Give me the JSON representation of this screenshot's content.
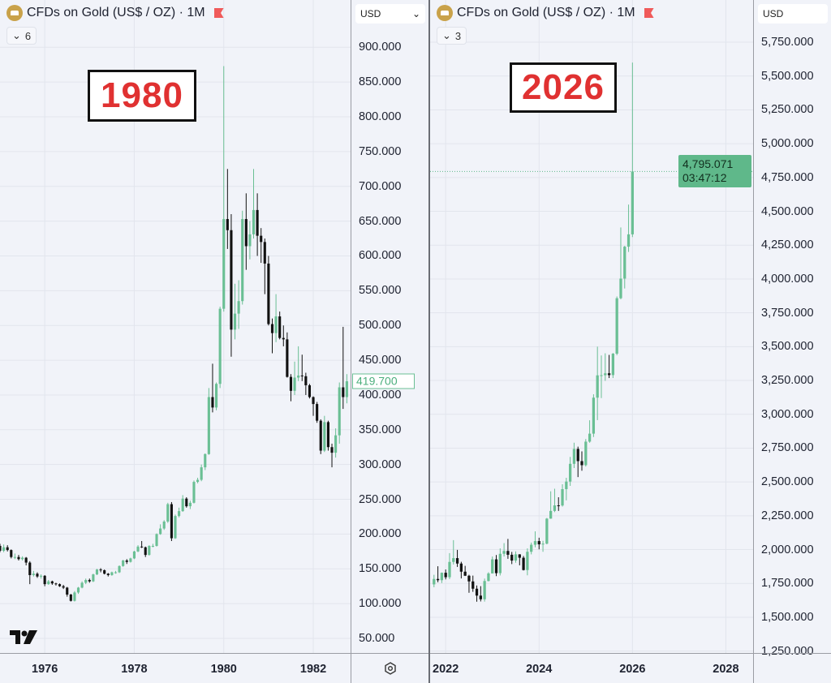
{
  "charts": [
    {
      "title": "CFDs on Gold (US$ / OZ) · 1M",
      "indicator_count": "6",
      "currency": "USD",
      "annotation": "1980",
      "last_price_label": "419.700",
      "y_ticks": [
        "900.000",
        "850.000",
        "800.000",
        "750.000",
        "700.000",
        "650.000",
        "600.000",
        "550.000",
        "500.000",
        "450.000",
        "400.000",
        "350.000",
        "300.000",
        "250.000",
        "200.000",
        "150.000",
        "100.000",
        "50.000"
      ],
      "x_ticks": [
        "1976",
        "1978",
        "1980",
        "1982"
      ]
    },
    {
      "title": "CFDs on Gold (US$ / OZ) · 1M",
      "indicator_count": "3",
      "currency": "USD",
      "annotation": "2026",
      "last_price_label": "4,795.071",
      "countdown": "03:47:12",
      "y_ticks": [
        "5,750.000",
        "5,500.000",
        "5,250.000",
        "5,000.000",
        "4,750.000",
        "4,500.000",
        "4,250.000",
        "4,000.000",
        "3,750.000",
        "3,500.000",
        "3,250.000",
        "3,000.000",
        "2,750.000",
        "2,500.000",
        "2,250.000",
        "2,000.000",
        "1,750.000",
        "1,500.000",
        "1,250.000"
      ],
      "x_ticks": [
        "2022",
        "2024",
        "2026",
        "2028"
      ]
    }
  ],
  "colors": {
    "up": "#6abf94",
    "down": "#111111",
    "grid": "#e2e5ed",
    "background": "#f1f3f9",
    "annotation": "#e03131"
  },
  "chart_data": [
    {
      "type": "candlestick",
      "title": "CFDs on Gold (US$ / OZ) · 1M",
      "currency": "USD",
      "xlim": [
        "1975-01",
        "1982-11"
      ],
      "ylim": [
        29,
        968
      ],
      "grid": true,
      "y_ticks": [
        900,
        850,
        800,
        750,
        700,
        650,
        600,
        550,
        500,
        450,
        400,
        350,
        300,
        250,
        200,
        150,
        100,
        50
      ],
      "x_ticks": [
        "1976",
        "1978",
        "1980",
        "1982"
      ],
      "last_price": 419.7,
      "columns": [
        "month",
        "open",
        "high",
        "low",
        "close"
      ],
      "candles": [
        [
          "1975-01",
          183,
          186,
          174,
          176
        ],
        [
          "1975-02",
          176,
          185,
          174,
          181
        ],
        [
          "1975-03",
          181,
          184,
          175,
          177
        ],
        [
          "1975-04",
          177,
          178,
          165,
          167
        ],
        [
          "1975-05",
          167,
          172,
          164,
          167
        ],
        [
          "1975-06",
          167,
          170,
          162,
          164
        ],
        [
          "1975-07",
          164,
          168,
          162,
          166
        ],
        [
          "1975-08",
          166,
          167,
          155,
          159
        ],
        [
          "1975-09",
          159,
          161,
          128,
          141
        ],
        [
          "1975-10",
          141,
          147,
          139,
          143
        ],
        [
          "1975-11",
          143,
          145,
          137,
          139
        ],
        [
          "1975-12",
          139,
          142,
          136,
          140
        ],
        [
          "1976-01",
          140,
          141,
          125,
          128
        ],
        [
          "1976-02",
          128,
          134,
          127,
          132
        ],
        [
          "1976-03",
          132,
          133,
          127,
          129
        ],
        [
          "1976-04",
          129,
          130,
          126,
          128
        ],
        [
          "1976-05",
          128,
          129,
          124,
          125
        ],
        [
          "1976-06",
          125,
          127,
          121,
          123
        ],
        [
          "1976-07",
          123,
          124,
          110,
          113
        ],
        [
          "1976-08",
          113,
          114,
          103,
          104
        ],
        [
          "1976-09",
          104,
          118,
          103,
          116
        ],
        [
          "1976-10",
          116,
          124,
          114,
          123
        ],
        [
          "1976-11",
          123,
          132,
          122,
          130
        ],
        [
          "1976-12",
          130,
          136,
          128,
          134
        ],
        [
          "1977-01",
          134,
          136,
          130,
          132
        ],
        [
          "1977-02",
          132,
          143,
          131,
          142
        ],
        [
          "1977-03",
          142,
          150,
          141,
          149
        ],
        [
          "1977-04",
          149,
          151,
          145,
          148
        ],
        [
          "1977-05",
          148,
          149,
          142,
          143
        ],
        [
          "1977-06",
          143,
          144,
          139,
          141
        ],
        [
          "1977-07",
          141,
          146,
          140,
          145
        ],
        [
          "1977-08",
          145,
          147,
          143,
          145
        ],
        [
          "1977-09",
          145,
          155,
          144,
          154
        ],
        [
          "1977-10",
          154,
          163,
          153,
          162
        ],
        [
          "1977-11",
          162,
          164,
          157,
          160
        ],
        [
          "1977-12",
          160,
          166,
          159,
          165
        ],
        [
          "1978-01",
          165,
          176,
          164,
          175
        ],
        [
          "1978-02",
          175,
          184,
          174,
          182
        ],
        [
          "1978-03",
          182,
          190,
          180,
          181
        ],
        [
          "1978-04",
          181,
          182,
          167,
          170
        ],
        [
          "1978-05",
          170,
          184,
          169,
          183
        ],
        [
          "1978-06",
          183,
          186,
          181,
          183
        ],
        [
          "1978-07",
          183,
          201,
          182,
          200
        ],
        [
          "1978-08",
          200,
          214,
          199,
          208
        ],
        [
          "1978-09",
          208,
          220,
          206,
          218
        ],
        [
          "1978-10",
          218,
          245,
          216,
          243
        ],
        [
          "1978-11",
          243,
          246,
          190,
          194
        ],
        [
          "1978-12",
          194,
          228,
          193,
          226
        ],
        [
          "1979-01",
          226,
          238,
          224,
          233
        ],
        [
          "1979-02",
          233,
          256,
          232,
          251
        ],
        [
          "1979-03",
          251,
          253,
          238,
          240
        ],
        [
          "1979-04",
          240,
          248,
          236,
          245
        ],
        [
          "1979-05",
          245,
          277,
          244,
          275
        ],
        [
          "1979-06",
          275,
          281,
          273,
          278
        ],
        [
          "1979-07",
          278,
          300,
          276,
          296
        ],
        [
          "1979-08",
          296,
          316,
          292,
          315
        ],
        [
          "1979-09",
          315,
          410,
          314,
          397
        ],
        [
          "1979-10",
          397,
          445,
          375,
          382
        ],
        [
          "1979-11",
          382,
          418,
          378,
          416
        ],
        [
          "1979-12",
          416,
          527,
          410,
          524
        ],
        [
          "1980-01",
          524,
          873,
          520,
          653
        ],
        [
          "1980-02",
          653,
          725,
          610,
          637
        ],
        [
          "1980-03",
          637,
          660,
          455,
          494
        ],
        [
          "1980-04",
          494,
          560,
          480,
          517
        ],
        [
          "1980-05",
          517,
          565,
          495,
          535
        ],
        [
          "1980-06",
          535,
          665,
          530,
          653
        ],
        [
          "1980-07",
          653,
          690,
          580,
          614
        ],
        [
          "1980-08",
          614,
          650,
          595,
          631
        ],
        [
          "1980-09",
          631,
          725,
          625,
          666
        ],
        [
          "1980-10",
          666,
          690,
          600,
          629
        ],
        [
          "1980-11",
          629,
          640,
          590,
          620
        ],
        [
          "1980-12",
          620,
          625,
          545,
          589
        ],
        [
          "1981-01",
          589,
          600,
          500,
          502
        ],
        [
          "1981-02",
          502,
          510,
          460,
          489
        ],
        [
          "1981-03",
          489,
          545,
          476,
          513
        ],
        [
          "1981-04",
          513,
          520,
          480,
          482
        ],
        [
          "1981-05",
          482,
          500,
          470,
          480
        ],
        [
          "1981-06",
          480,
          490,
          425,
          426
        ],
        [
          "1981-07",
          426,
          430,
          391,
          406
        ],
        [
          "1981-08",
          406,
          448,
          400,
          425
        ],
        [
          "1981-09",
          425,
          470,
          420,
          428
        ],
        [
          "1981-10",
          428,
          458,
          420,
          427
        ],
        [
          "1981-11",
          427,
          432,
          400,
          414
        ],
        [
          "1981-12",
          414,
          416,
          395,
          397
        ],
        [
          "1982-01",
          397,
          398,
          370,
          387
        ],
        [
          "1982-02",
          387,
          390,
          360,
          363
        ],
        [
          "1982-03",
          363,
          365,
          315,
          320
        ],
        [
          "1982-04",
          320,
          370,
          318,
          361
        ],
        [
          "1982-05",
          361,
          363,
          320,
          325
        ],
        [
          "1982-06",
          325,
          330,
          296,
          317
        ],
        [
          "1982-07",
          317,
          352,
          310,
          342
        ],
        [
          "1982-08",
          342,
          418,
          330,
          411
        ],
        [
          "1982-09",
          411,
          498,
          380,
          397
        ],
        [
          "1982-10",
          397,
          430,
          388,
          419.7
        ]
      ]
    },
    {
      "type": "candlestick",
      "title": "CFDs on Gold (US$ / OZ) · 1M",
      "currency": "USD",
      "xlim": [
        "2021-09",
        "2028-08"
      ],
      "ylim": [
        1236,
        6062
      ],
      "grid": true,
      "y_ticks": [
        5750,
        5500,
        5250,
        5000,
        4750,
        4500,
        4250,
        4000,
        3750,
        3500,
        3250,
        3000,
        2750,
        2500,
        2250,
        2000,
        1750,
        1500,
        1250
      ],
      "x_ticks": [
        "2022",
        "2024",
        "2026",
        "2028"
      ],
      "last_price": 4795.071,
      "columns": [
        "month",
        "open",
        "high",
        "low",
        "close"
      ],
      "candles": [
        [
          "2021-10",
          1743,
          1814,
          1722,
          1783
        ],
        [
          "2021-11",
          1783,
          1877,
          1759,
          1774
        ],
        [
          "2021-12",
          1774,
          1831,
          1753,
          1829
        ],
        [
          "2022-01",
          1829,
          1853,
          1780,
          1796
        ],
        [
          "2022-02",
          1796,
          1974,
          1782,
          1909
        ],
        [
          "2022-03",
          1909,
          2070,
          1890,
          1937
        ],
        [
          "2022-04",
          1937,
          1998,
          1872,
          1897
        ],
        [
          "2022-05",
          1897,
          1910,
          1787,
          1837
        ],
        [
          "2022-06",
          1837,
          1880,
          1805,
          1807
        ],
        [
          "2022-07",
          1807,
          1814,
          1681,
          1765
        ],
        [
          "2022-08",
          1765,
          1808,
          1688,
          1711
        ],
        [
          "2022-09",
          1711,
          1735,
          1615,
          1660
        ],
        [
          "2022-10",
          1660,
          1730,
          1617,
          1633
        ],
        [
          "2022-11",
          1633,
          1786,
          1616,
          1768
        ],
        [
          "2022-12",
          1768,
          1833,
          1765,
          1824
        ],
        [
          "2023-01",
          1824,
          1949,
          1823,
          1928
        ],
        [
          "2023-02",
          1928,
          1960,
          1804,
          1826
        ],
        [
          "2023-03",
          1826,
          2009,
          1809,
          1969
        ],
        [
          "2023-04",
          1969,
          2048,
          1949,
          1990
        ],
        [
          "2023-05",
          1990,
          2079,
          1932,
          1962
        ],
        [
          "2023-06",
          1962,
          1983,
          1893,
          1919
        ],
        [
          "2023-07",
          1919,
          1987,
          1903,
          1965
        ],
        [
          "2023-08",
          1965,
          1966,
          1884,
          1940
        ],
        [
          "2023-09",
          1940,
          1953,
          1846,
          1849
        ],
        [
          "2023-10",
          1849,
          2009,
          1810,
          1984
        ],
        [
          "2023-11",
          1984,
          2052,
          1965,
          2036
        ],
        [
          "2023-12",
          2036,
          2135,
          2017,
          2063
        ],
        [
          "2024-01",
          2063,
          2088,
          2002,
          2039
        ],
        [
          "2024-02",
          2039,
          2065,
          1984,
          2044
        ],
        [
          "2024-03",
          2044,
          2234,
          2039,
          2229
        ],
        [
          "2024-04",
          2229,
          2431,
          2228,
          2286
        ],
        [
          "2024-05",
          2286,
          2450,
          2277,
          2327
        ],
        [
          "2024-06",
          2327,
          2387,
          2286,
          2326
        ],
        [
          "2024-07",
          2326,
          2483,
          2318,
          2447
        ],
        [
          "2024-08",
          2447,
          2531,
          2364,
          2503
        ],
        [
          "2024-09",
          2503,
          2685,
          2471,
          2634
        ],
        [
          "2024-10",
          2634,
          2790,
          2603,
          2744
        ],
        [
          "2024-11",
          2744,
          2761,
          2536,
          2654
        ],
        [
          "2024-12",
          2654,
          2726,
          2583,
          2624
        ],
        [
          "2025-01",
          2624,
          2817,
          2614,
          2798
        ],
        [
          "2025-02",
          2798,
          2956,
          2790,
          2857
        ],
        [
          "2025-03",
          2857,
          3148,
          2832,
          3123
        ],
        [
          "2025-04",
          3123,
          3500,
          2957,
          3288
        ],
        [
          "2025-05",
          3288,
          3435,
          3120,
          3289
        ],
        [
          "2025-06",
          3289,
          3451,
          3247,
          3303
        ],
        [
          "2025-07",
          3303,
          3439,
          3268,
          3290
        ],
        [
          "2025-08",
          3290,
          3453,
          3268,
          3448
        ],
        [
          "2025-09",
          3448,
          3871,
          3437,
          3858
        ],
        [
          "2025-10",
          3858,
          4381,
          3850,
          4003
        ],
        [
          "2025-11",
          4003,
          4245,
          3930,
          4239
        ],
        [
          "2025-12",
          4239,
          4550,
          4200,
          4330
        ],
        [
          "2026-01",
          4330,
          5600,
          4310,
          4795.071
        ]
      ]
    }
  ]
}
